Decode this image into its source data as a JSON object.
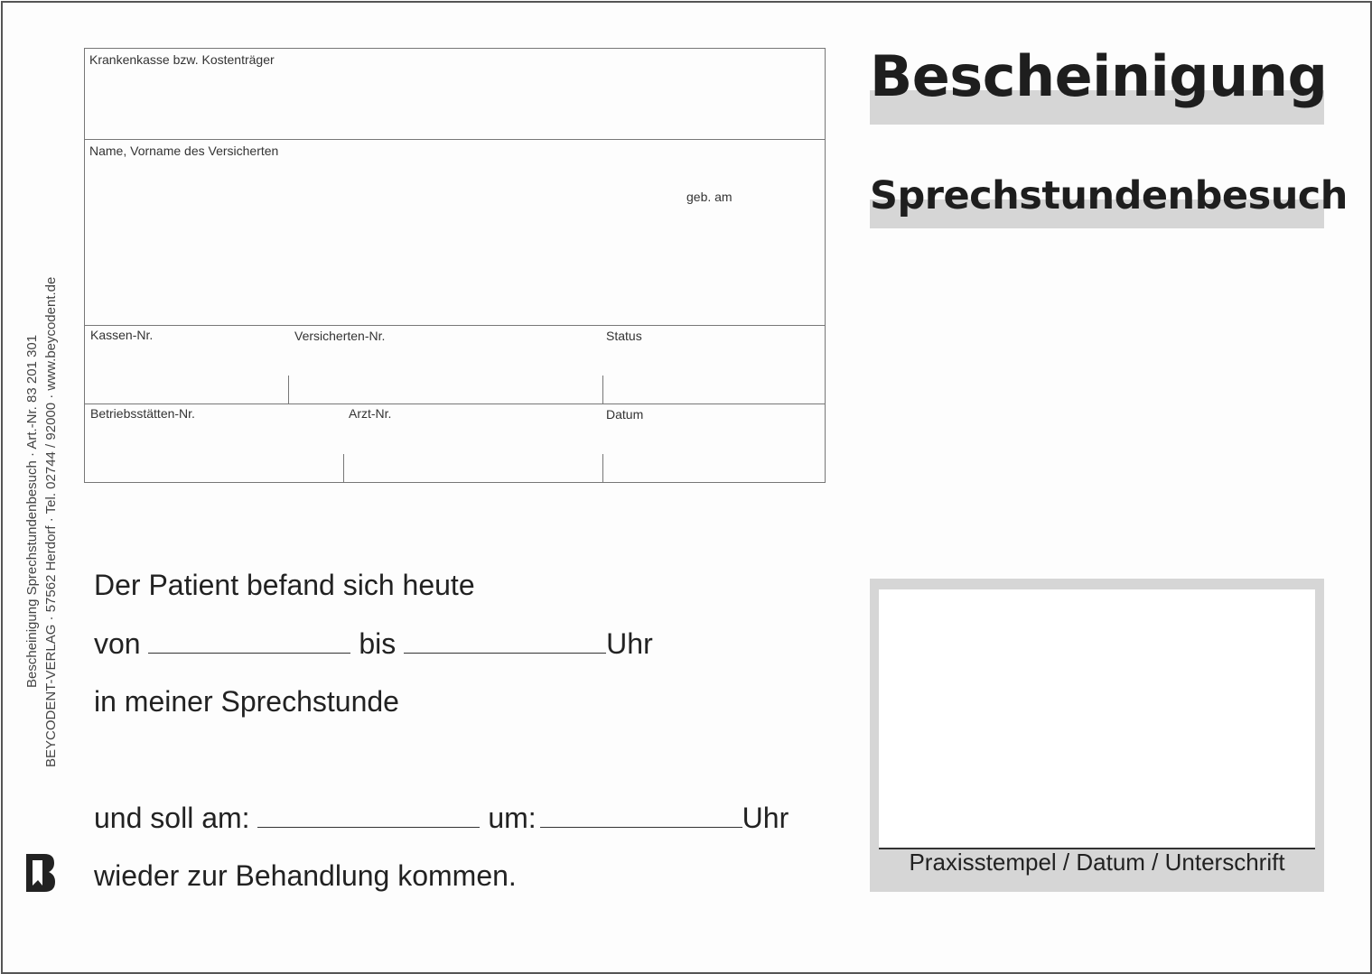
{
  "form": {
    "krankenkasse": "Krankenkasse bzw. Kostenträger",
    "name": "Name, Vorname des Versicherten",
    "geb_am": "geb. am",
    "kassen_nr": "Kassen-Nr.",
    "versicherten_nr": "Versicherten-Nr.",
    "status": "Status",
    "betriebsstaetten_nr": "Betriebsstätten-Nr.",
    "arzt_nr": "Arzt-Nr.",
    "datum": "Datum"
  },
  "header": {
    "title": "Bescheinigung",
    "subtitle": "Sprechstundenbesuch"
  },
  "body": {
    "line1": "Der Patient befand sich heute",
    "von": "von",
    "bis": "bis",
    "uhr": "Uhr",
    "line3": "in meiner Sprechstunde",
    "und_soll_am": "und soll am:",
    "um": "um:",
    "line5": "wieder zur Behandlung kommen."
  },
  "stamp": {
    "label": "Praxisstempel / Datum / Unterschrift"
  },
  "imprint": {
    "line1": "Bescheinigung Sprechstundenbesuch · Art.-Nr. 83 201 301",
    "line2": "BEYCODENT-VERLAG · 57562 Herdorf · Tel. 02744 / 92000 · www.beycodent.de"
  },
  "logo": {
    "text": "B",
    "icon": "beycodent-logo-icon"
  }
}
